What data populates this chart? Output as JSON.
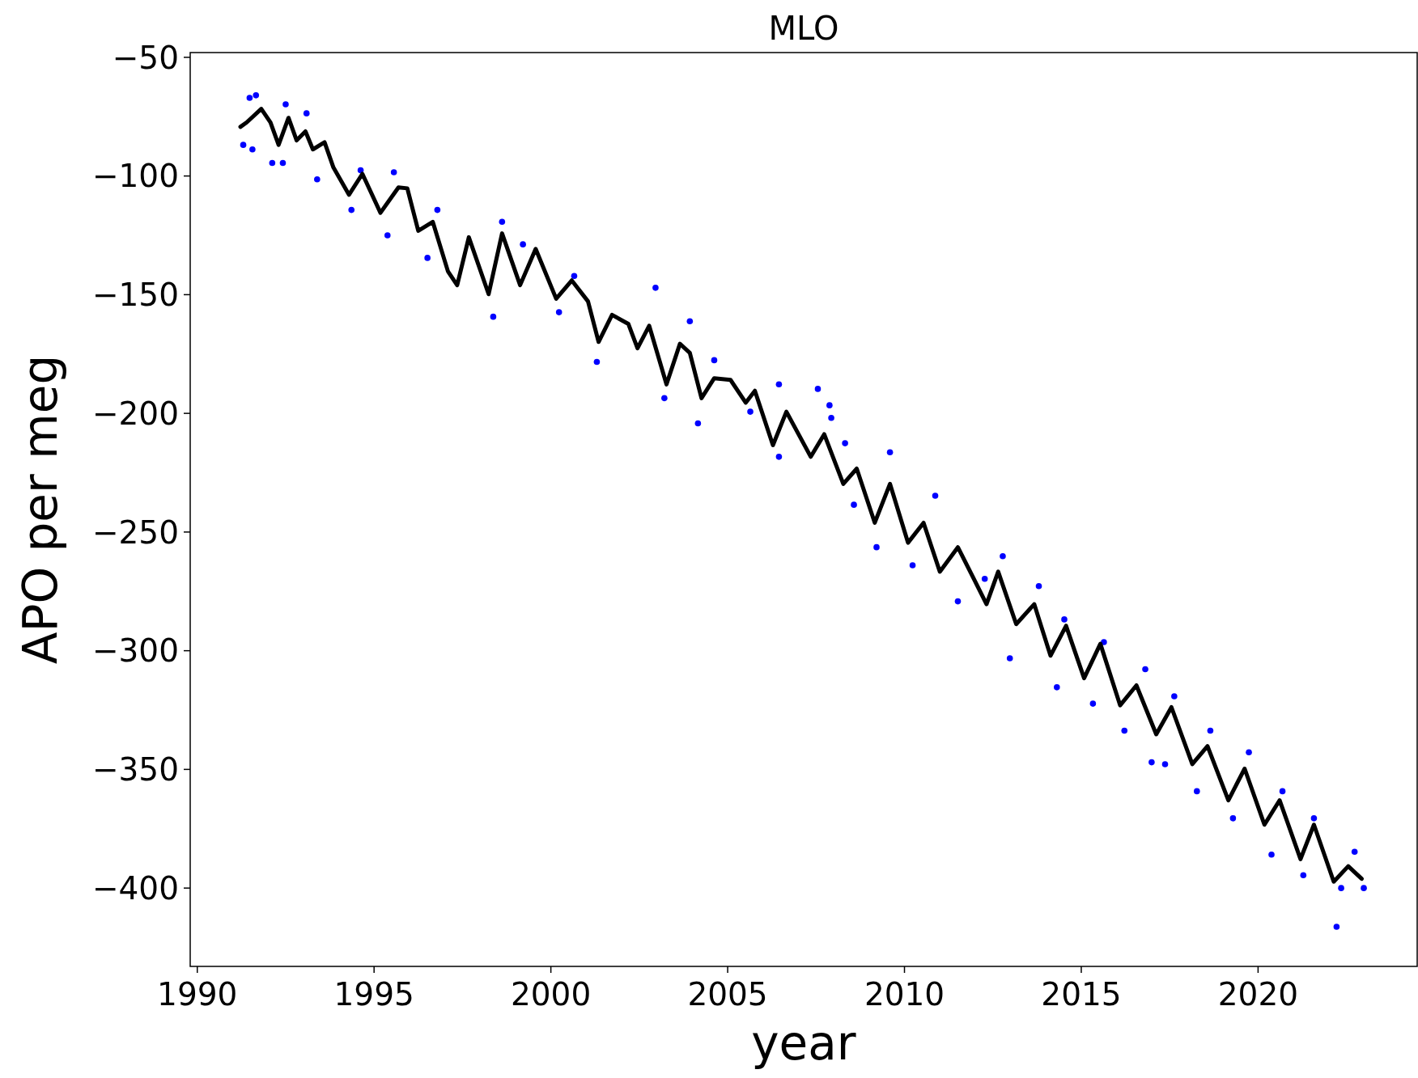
{
  "chart_data": {
    "type": "scatter",
    "title": "MLO",
    "xlabel": "year",
    "ylabel": "APO per meg",
    "xlim": [
      1989.8,
      2024.5
    ],
    "ylim": [
      -433,
      -48
    ],
    "xticks": [
      1990,
      1995,
      2000,
      2005,
      2010,
      2015,
      2020
    ],
    "yticks": [
      {
        "value": -50,
        "label": "−50"
      },
      {
        "value": -100,
        "label": "−100"
      },
      {
        "value": -150,
        "label": "−150"
      },
      {
        "value": -200,
        "label": "−200"
      },
      {
        "value": -250,
        "label": "−250"
      },
      {
        "value": -300,
        "label": "−300"
      },
      {
        "value": -350,
        "label": "−350"
      },
      {
        "value": -400,
        "label": "−400"
      }
    ],
    "grid": false,
    "marker": "circle",
    "series": [
      {
        "color": "#0000ff",
        "x": [
          1991.66,
          1991.48,
          1991.3,
          1991.56,
          1992.12,
          1992.42,
          1992.5,
          1993.09,
          1993.39,
          1994.36,
          1994.62,
          1995.38,
          1995.56,
          1996.51,
          1996.79,
          1998.37,
          1998.62,
          1999.21,
          2000.23,
          2000.66,
          2001.3,
          2002.96,
          2003.93,
          2003.21,
          2004.16,
          2004.62,
          2005.64,
          2006.45,
          2006.45,
          2007.55,
          2007.88,
          2007.93,
          2008.32,
          2008.57,
          2009.21,
          2009.59,
          2010.23,
          2010.87,
          2011.51,
          2012.27,
          2012.78,
          2012.98,
          2013.8,
          2014.31,
          2014.52,
          2015.33,
          2015.64,
          2016.22,
          2016.81,
          2016.99,
          2017.37,
          2017.63,
          2018.27,
          2018.65,
          2019.29,
          2019.74,
          2020.38,
          2020.69,
          2021.28,
          2021.58,
          2022.22,
          2022.35,
          2022.73,
          2022.99
        ],
        "values": [
          -66,
          -67.1,
          -86.9,
          -88.8,
          -94.5,
          -94.5,
          -69.8,
          -73.6,
          -101.4,
          -114.3,
          -97.6,
          -125,
          -98.4,
          -134.5,
          -114.3,
          -159.3,
          -119.3,
          -128.8,
          -157.4,
          -142.1,
          -178.3,
          -147.1,
          -161.2,
          -193.6,
          -204.2,
          -177.6,
          -199.3,
          -218.3,
          -187.8,
          -189.7,
          -196.6,
          -201.9,
          -212.6,
          -238.5,
          -256.4,
          -216.4,
          -264,
          -234.7,
          -279.2,
          -269.7,
          -260.2,
          -303.2,
          -272.8,
          -315.4,
          -286.8,
          -322.3,
          -296.4,
          -333.7,
          -307.8,
          -347,
          -347.8,
          -319.2,
          -359.2,
          -333.7,
          -370.6,
          -342.8,
          -385.9,
          -359.2,
          -394.6,
          -370.6,
          -416.3,
          -400,
          -384.7,
          -400
        ]
      },
      {
        "type": "line",
        "color": "#000000",
        "line_style": "solid",
        "marker": "none",
        "x": [
          1991.22,
          1991.4,
          1991.81,
          1992.07,
          1992.3,
          1992.58,
          1992.81,
          1993.06,
          1993.27,
          1993.6,
          1993.85,
          1994.29,
          1994.67,
          1995.18,
          1995.69,
          1995.94,
          1996.25,
          1996.66,
          1997.09,
          1997.35,
          1997.68,
          1998.24,
          1998.62,
          1999.13,
          1999.57,
          2000.15,
          2000.59,
          2001.05,
          2001.35,
          2001.73,
          2002.19,
          2002.45,
          2002.78,
          2003.27,
          2003.65,
          2003.93,
          2004.26,
          2004.62,
          2005.08,
          2005.51,
          2005.77,
          2006.28,
          2006.66,
          2007.35,
          2007.73,
          2008.27,
          2008.65,
          2009.16,
          2009.59,
          2010.1,
          2010.54,
          2011.0,
          2011.51,
          2011.96,
          2012.32,
          2012.65,
          2013.16,
          2013.67,
          2014.13,
          2014.57,
          2015.08,
          2015.54,
          2016.1,
          2016.56,
          2017.12,
          2017.55,
          2018.14,
          2018.57,
          2019.16,
          2019.62,
          2020.18,
          2020.61,
          2021.2,
          2021.58,
          2022.14,
          2022.55,
          2022.93
        ],
        "values": [
          -79.3,
          -77.4,
          -71.7,
          -77.4,
          -86.9,
          -75.5,
          -85,
          -81.2,
          -88.8,
          -85.8,
          -96.4,
          -107.9,
          -99.1,
          -115.5,
          -104.8,
          -105.2,
          -123.1,
          -119.3,
          -140.2,
          -146,
          -125.8,
          -149.8,
          -124.2,
          -146,
          -130.7,
          -151.7,
          -144,
          -152.8,
          -169.9,
          -158.5,
          -162.3,
          -172.6,
          -163.1,
          -187.8,
          -170.7,
          -174.5,
          -193.6,
          -185.2,
          -185.9,
          -195.5,
          -190.5,
          -213.4,
          -199.3,
          -218.3,
          -208.8,
          -229.7,
          -223.3,
          -246.1,
          -229.7,
          -254.5,
          -246.1,
          -266.7,
          -256.4,
          -269.7,
          -280.4,
          -266.7,
          -288.8,
          -280.4,
          -302.1,
          -289.5,
          -311.6,
          -297.1,
          -323,
          -314.6,
          -335.2,
          -323.8,
          -347.8,
          -340.2,
          -363,
          -349.7,
          -373.3,
          -363,
          -387.8,
          -373.3,
          -397.3,
          -390.8,
          -396.1
        ]
      }
    ]
  }
}
